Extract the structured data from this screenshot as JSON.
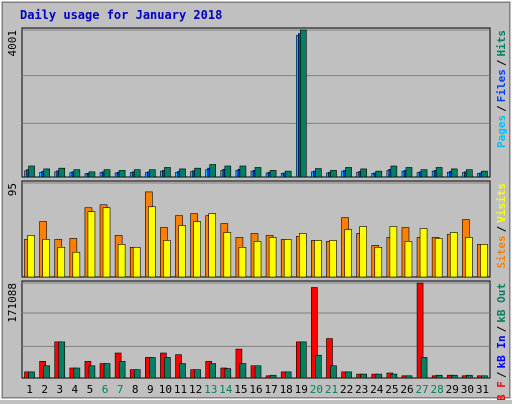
{
  "chart_data": [
    {
      "type": "bar",
      "title": "Daily usage for January 2018",
      "legend_separator": "/",
      "ylim": [
        0,
        4001
      ],
      "yticks": [
        4001
      ],
      "gridlines": [
        2760,
        1460
      ],
      "series": [
        {
          "name": "Pages",
          "color": "#00c0ff",
          "values": [
            170,
            130,
            140,
            120,
            90,
            120,
            110,
            120,
            120,
            160,
            130,
            150,
            200,
            180,
            180,
            160,
            110,
            100,
            3850,
            140,
            110,
            160,
            130,
            100,
            180,
            160,
            120,
            160,
            130,
            120,
            100
          ]
        },
        {
          "name": "Files",
          "color": "#0040ff",
          "values": [
            200,
            150,
            170,
            140,
            100,
            140,
            130,
            140,
            140,
            180,
            150,
            170,
            240,
            210,
            210,
            180,
            130,
            110,
            3900,
            160,
            130,
            180,
            150,
            110,
            210,
            180,
            140,
            180,
            150,
            140,
            110
          ]
        },
        {
          "name": "Hits",
          "color": "#008060",
          "values": [
            300,
            220,
            240,
            200,
            140,
            200,
            180,
            200,
            200,
            260,
            220,
            240,
            340,
            300,
            300,
            260,
            180,
            160,
            4001,
            230,
            180,
            260,
            220,
            160,
            300,
            260,
            200,
            260,
            220,
            200,
            160
          ]
        }
      ]
    },
    {
      "type": "bar",
      "legend_separator": "/",
      "ylim": [
        0,
        95
      ],
      "yticks": [
        95
      ],
      "gridlines": [],
      "series": [
        {
          "name": "Sites",
          "color": "#ff8000",
          "values": [
            38,
            56,
            38,
            39,
            70,
            73,
            42,
            30,
            86,
            50,
            62,
            64,
            62,
            54,
            40,
            44,
            42,
            38,
            41,
            37,
            36,
            60,
            44,
            32,
            40,
            50,
            40,
            40,
            43,
            58,
            33
          ]
        },
        {
          "name": "Visits",
          "color": "#ffff00",
          "values": [
            42,
            38,
            30,
            25,
            66,
            70,
            33,
            30,
            71,
            37,
            52,
            56,
            64,
            45,
            30,
            36,
            40,
            38,
            44,
            37,
            37,
            48,
            51,
            30,
            51,
            36,
            49,
            39,
            45,
            40,
            33
          ]
        }
      ]
    },
    {
      "type": "bar",
      "legend_separator": "/",
      "ylim": [
        0,
        171088
      ],
      "yticks": [
        171088
      ],
      "gridlines": [
        117000,
        57000
      ],
      "categories": [
        "1",
        "2",
        "3",
        "4",
        "5",
        "6",
        "7",
        "8",
        "9",
        "10",
        "11",
        "12",
        "13",
        "14",
        "15",
        "16",
        "17",
        "18",
        "19",
        "20",
        "21",
        "22",
        "23",
        "24",
        "25",
        "26",
        "27",
        "28",
        "29",
        "30",
        "31"
      ],
      "weekend_indices": [
        5,
        6,
        12,
        13,
        19,
        20,
        26,
        27
      ],
      "weekend_color": "#008060",
      "series": [
        {
          "name": "kB F",
          "color": "#ff0000",
          "values": [
            11000,
            30000,
            65000,
            18000,
            30000,
            26000,
            45000,
            15000,
            37000,
            45000,
            42000,
            15000,
            30000,
            18000,
            52000,
            22000,
            4000,
            11000,
            65000,
            163000,
            71000,
            11000,
            7000,
            7000,
            9000,
            4000,
            171088,
            4000,
            5000,
            4000,
            4000
          ]
        },
        {
          "name": "kB In",
          "color": "#0000ff",
          "values": [
            0,
            0,
            0,
            0,
            0,
            0,
            0,
            0,
            0,
            0,
            0,
            0,
            0,
            0,
            0,
            0,
            0,
            0,
            0,
            0,
            0,
            0,
            0,
            0,
            0,
            0,
            0,
            0,
            0,
            0,
            0
          ]
        },
        {
          "name": "kB Out",
          "color": "#008060",
          "values": [
            11000,
            22000,
            65000,
            18000,
            22000,
            26000,
            30000,
            15000,
            37000,
            37000,
            26000,
            15000,
            26000,
            17000,
            26000,
            22000,
            5000,
            11000,
            65000,
            41000,
            22000,
            11000,
            7000,
            7000,
            7000,
            4000,
            37000,
            5000,
            5000,
            5000,
            4000
          ]
        }
      ]
    }
  ]
}
